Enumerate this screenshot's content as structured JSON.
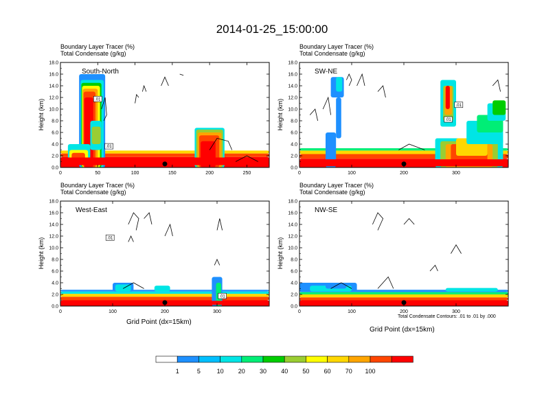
{
  "title": "2014-01-25_15:00:00",
  "colorbar": {
    "labels": [
      "1",
      "5",
      "10",
      "20",
      "30",
      "40",
      "50",
      "60",
      "70",
      "100"
    ],
    "colors": [
      "#ffffff",
      "#1e90ff",
      "#00bfff",
      "#00e5e5",
      "#00ee76",
      "#00cd00",
      "#9acd32",
      "#ffff00",
      "#ffd700",
      "#ffa500",
      "#ff4500",
      "#ff0000"
    ]
  },
  "chart_data": [
    {
      "type": "heatmap",
      "name": "South-North",
      "label_line1": "Boundary Layer Tracer   (%)",
      "label_line2": "Total Condensate   (g/kg)",
      "ylabel": "Height (km)",
      "xlabel": "",
      "xlim": [
        0,
        280
      ],
      "ylim": [
        0,
        18
      ],
      "xticks": [
        "0",
        "50",
        "100",
        "150",
        "200",
        "250"
      ],
      "yticks": [
        "0.0",
        "2.0",
        "4.0",
        "6.0",
        "8.0",
        "10.0",
        "12.0",
        "14.0",
        "16.0",
        "18.0"
      ],
      "contour_labels": [
        ".01",
        ".01"
      ],
      "marker_x": 140
    },
    {
      "type": "heatmap",
      "name": "SW-NE",
      "label_line1": "Boundary Layer Tracer   (%)",
      "label_line2": "Total Condensate   (g/kg)",
      "ylabel": "Height (km)",
      "xlabel": "",
      "xlim": [
        0,
        400
      ],
      "ylim": [
        0,
        18
      ],
      "xticks": [
        "0",
        "100",
        "200",
        "300"
      ],
      "yticks": [
        "0.0",
        "2.0",
        "4.0",
        "6.0",
        "8.0",
        "10.0",
        "12.0",
        "14.0",
        "16.0",
        "18.0"
      ],
      "contour_labels": [
        ".01",
        ".01"
      ],
      "marker_x": 200
    },
    {
      "type": "heatmap",
      "name": "West-East",
      "label_line1": "Boundary Layer Tracer   (%)",
      "label_line2": "Total Condensate   (g/kg)",
      "ylabel": "Height (km)",
      "xlabel": "Grid Point (dx=15km)",
      "xlim": [
        0,
        400
      ],
      "ylim": [
        0,
        18
      ],
      "xticks": [
        "0",
        "100",
        "200",
        "300"
      ],
      "yticks": [
        "0.0",
        "2.0",
        "4.0",
        "6.0",
        "8.0",
        "10.0",
        "12.0",
        "14.0",
        "16.0",
        "18.0"
      ],
      "contour_labels": [
        ".01",
        ".01"
      ],
      "marker_x": 200
    },
    {
      "type": "heatmap",
      "name": "NW-SE",
      "label_line1": "Boundary Layer Tracer   (%)",
      "label_line2": "Total Condensate   (g/kg)",
      "ylabel": "Height (km)",
      "xlabel": "Grid Point (dx=15km)",
      "xlim": [
        0,
        400
      ],
      "ylim": [
        0,
        18
      ],
      "xticks": [
        "0",
        "100",
        "200",
        "300"
      ],
      "yticks": [
        "0.0",
        "2.0",
        "4.0",
        "6.0",
        "8.0",
        "10.0",
        "12.0",
        "14.0",
        "16.0",
        "18.0"
      ],
      "contour_labels": [],
      "marker_x": 200,
      "contour_note": "Total Condensate Contours: .01 to .01 by .000"
    }
  ]
}
